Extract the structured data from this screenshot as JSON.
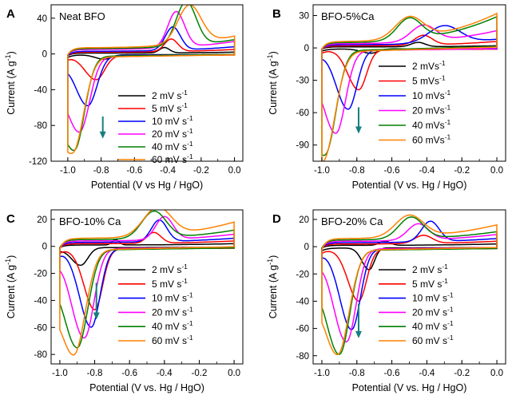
{
  "figure": {
    "ylabel_main": "Current (A g",
    "ylabel_sup": "-1",
    "ylabel_close": ")"
  },
  "chart_data": [
    {
      "id": "A",
      "panel_label": "A",
      "title": "Neat BFO",
      "type": "line",
      "xlabel": "Potential (V vs Hg / HgO)",
      "ylabel": "Current (A g-1)",
      "xlim": [
        -1.1,
        0.05
      ],
      "ylim": [
        -120,
        55
      ],
      "xticks": [
        -1.0,
        -0.8,
        -0.6,
        -0.4,
        -0.2,
        0.0
      ],
      "xtick_labels": [
        "-1.0",
        "-0.8",
        "-0.6",
        "-0.4",
        "-0.2",
        "0.0"
      ],
      "yticks": [
        -120,
        -80,
        -40,
        0,
        40
      ],
      "ytick_labels": [
        "-120",
        "-80",
        "-40",
        "0",
        "40"
      ],
      "arrow": {
        "x": -0.79,
        "y_from": -70,
        "y_to": -93
      },
      "series": [
        {
          "name": "2 mV s",
          "unit_sup": "-1",
          "color": "#000000",
          "cath_v": -0.78,
          "cath_i": -5,
          "cath_w": 0.04,
          "anod_v": -0.42,
          "anod_i": 6,
          "anod_w": 0.03,
          "start_i": -3,
          "end_i": 2,
          "base_top": 1,
          "base_bot": -1
        },
        {
          "name": "5 mV s",
          "unit_sup": "-1",
          "color": "#ff0000",
          "cath_v": -0.83,
          "cath_i": -27,
          "cath_w": 0.05,
          "anod_v": -0.38,
          "anod_i": 14,
          "anod_w": 0.04,
          "start_i": -4,
          "end_i": 5,
          "base_top": 2,
          "base_bot": -2
        },
        {
          "name": "10 mV s",
          "unit_sup": "-1",
          "color": "#0000ff",
          "cath_v": -0.88,
          "cath_i": -56,
          "cath_w": 0.055,
          "anod_v": -0.37,
          "anod_i": 26,
          "anod_w": 0.045,
          "start_i": -5,
          "end_i": 8,
          "base_top": 3,
          "base_bot": -2
        },
        {
          "name": "20 mV s",
          "unit_sup": "-1",
          "color": "#ff00ff",
          "cath_v": -0.93,
          "cath_i": -84,
          "cath_w": 0.06,
          "anod_v": -0.35,
          "anod_i": 40,
          "anod_w": 0.05,
          "start_i": -6,
          "end_i": 14,
          "base_top": 5,
          "base_bot": -3
        },
        {
          "name": "40 mV s",
          "unit_sup": "-1",
          "color": "#008000",
          "cath_v": -0.96,
          "cath_i": -103,
          "cath_w": 0.06,
          "anod_v": -0.29,
          "anod_i": 49,
          "anod_w": 0.06,
          "start_i": -7,
          "end_i": 16,
          "base_top": 6,
          "base_bot": -3
        },
        {
          "name": "60 mV s",
          "unit_sup": "-1",
          "color": "#ff8000",
          "cath_v": -0.97,
          "cath_i": -104,
          "cath_w": 0.065,
          "anod_v": -0.27,
          "anod_i": 43,
          "anod_w": 0.07,
          "start_i": -8,
          "end_i": 20,
          "base_top": 7,
          "base_bot": -4
        }
      ]
    },
    {
      "id": "B",
      "panel_label": "B",
      "title": "BFO-5%Ca",
      "type": "line",
      "xlabel": "Potential (V vs. Hg / HgO)",
      "ylabel": "Current (A g-1)",
      "xlim": [
        -1.05,
        0.05
      ],
      "ylim": [
        -105,
        40
      ],
      "xticks": [
        -1.0,
        -0.8,
        -0.6,
        -0.4,
        -0.2,
        0.0
      ],
      "xtick_labels": [
        "-1.0",
        "-0.8",
        "-0.6",
        "-0.4",
        "-0.2",
        "0.0"
      ],
      "yticks": [
        -90,
        -60,
        -30,
        0,
        30
      ],
      "ytick_labels": [
        "-90",
        "-60",
        "-30",
        "0",
        "30"
      ],
      "arrow": {
        "x": -0.79,
        "y_from": -55,
        "y_to": -78
      },
      "series": [
        {
          "name": "2 mVs",
          "unit_sup": "-1",
          "color": "#000000",
          "cath_v": -0.72,
          "cath_i": -4,
          "cath_w": 0.04,
          "anod_v": -0.45,
          "anod_i": 4,
          "anod_w": 0.04,
          "start_i": -2,
          "end_i": 2,
          "base_top": 1,
          "base_bot": -1
        },
        {
          "name": "5 mVs",
          "unit_sup": "-1",
          "color": "#ff0000",
          "cath_v": -0.79,
          "cath_i": -37,
          "cath_w": 0.045,
          "anod_v": -0.42,
          "anod_i": 9,
          "anod_w": 0.05,
          "start_i": -3,
          "end_i": 6,
          "base_top": 2,
          "base_bot": -2
        },
        {
          "name": "10 mVs",
          "unit_sup": "-1",
          "color": "#0000ff",
          "cath_v": -0.85,
          "cath_i": -55,
          "cath_w": 0.05,
          "anod_v": -0.3,
          "anod_i": 16,
          "anod_w": 0.09,
          "start_i": -4,
          "end_i": 8,
          "base_top": 3,
          "base_bot": -2
        },
        {
          "name": "20 mVs",
          "unit_sup": "-1",
          "color": "#ff00ff",
          "cath_v": -0.92,
          "cath_i": -76,
          "cath_w": 0.055,
          "anod_v": -0.42,
          "anod_i": 15,
          "anod_w": 0.07,
          "start_i": -5,
          "end_i": 16,
          "base_top": 4,
          "base_bot": -3
        },
        {
          "name": "40 mVs",
          "unit_sup": "-1",
          "color": "#008000",
          "cath_v": -0.98,
          "cath_i": -93,
          "cath_w": 0.06,
          "anod_v": -0.5,
          "anod_i": 20,
          "anod_w": 0.07,
          "start_i": -6,
          "end_i": 29,
          "base_top": 5,
          "base_bot": -3
        },
        {
          "name": "60 mVs",
          "unit_sup": "-1",
          "color": "#ff8000",
          "cath_v": -0.99,
          "cath_i": -96,
          "cath_w": 0.065,
          "anod_v": -0.5,
          "anod_i": 20,
          "anod_w": 0.08,
          "start_i": -7,
          "end_i": 32,
          "base_top": 6,
          "base_bot": -4
        }
      ]
    },
    {
      "id": "C",
      "panel_label": "C",
      "title": "BFO-10% Ca",
      "type": "line",
      "xlabel": "Potential (V vs. Hg / HgO)",
      "ylabel": "Current (A g-1)",
      "xlim": [
        -1.05,
        0.05
      ],
      "ylim": [
        -87,
        27
      ],
      "xticks": [
        -1.0,
        -0.8,
        -0.6,
        -0.4,
        -0.2,
        0.0
      ],
      "xtick_labels": [
        "-1.0",
        "-0.8",
        "-0.6",
        "-0.4",
        "-0.2",
        "0.0"
      ],
      "yticks": [
        -80,
        -60,
        -40,
        -20,
        0,
        20
      ],
      "ytick_labels": [
        "-80",
        "-60",
        "-40",
        "-20",
        "0",
        "20"
      ],
      "arrow": {
        "x": -0.79,
        "y_from": -27,
        "y_to": -53
      },
      "series": [
        {
          "name": "2 mV s",
          "unit_sup": "-1",
          "color": "#000000",
          "cath_v": -0.88,
          "cath_i": -13,
          "cath_w": 0.04,
          "anod_v": -0.68,
          "anod_i": 4,
          "anod_w": 0.02,
          "start_i": -2,
          "end_i": 2,
          "base_top": 1,
          "base_bot": -1
        },
        {
          "name": "5 mV s",
          "unit_sup": "-1",
          "color": "#ff0000",
          "cath_v": -0.8,
          "cath_i": -45,
          "cath_w": 0.045,
          "anod_v": -0.46,
          "anod_i": 8,
          "anod_w": 0.04,
          "start_i": -3,
          "end_i": 4,
          "base_top": 2,
          "base_bot": -2
        },
        {
          "name": "10 mV s",
          "unit_sup": "-1",
          "color": "#0000ff",
          "cath_v": -0.82,
          "cath_i": -58,
          "cath_w": 0.05,
          "anod_v": -0.43,
          "anod_i": 16,
          "anod_w": 0.045,
          "start_i": -4,
          "end_i": 6,
          "base_top": 3,
          "base_bot": -2
        },
        {
          "name": "20 mV s",
          "unit_sup": "-1",
          "color": "#ff00ff",
          "cath_v": -0.86,
          "cath_i": -66,
          "cath_w": 0.055,
          "anod_v": -0.4,
          "anod_i": 17,
          "anod_w": 0.05,
          "start_i": -5,
          "end_i": 9,
          "base_top": 4,
          "base_bot": -2
        },
        {
          "name": "40 mV s",
          "unit_sup": "-1",
          "color": "#008000",
          "cath_v": -0.9,
          "cath_i": -72,
          "cath_w": 0.06,
          "anod_v": -0.46,
          "anod_i": 20,
          "anod_w": 0.07,
          "start_i": -6,
          "end_i": 12,
          "base_top": 5,
          "base_bot": -3
        },
        {
          "name": "60 mV s",
          "unit_sup": "-1",
          "color": "#ff8000",
          "cath_v": -0.92,
          "cath_i": -77,
          "cath_w": 0.065,
          "anod_v": -0.44,
          "anod_i": 21,
          "anod_w": 0.08,
          "start_i": -8,
          "end_i": 18,
          "base_top": 6,
          "base_bot": -3
        }
      ]
    },
    {
      "id": "D",
      "panel_label": "D",
      "title": "BFO-20% Ca",
      "type": "line",
      "xlabel": "Potential (V vs. Hg / HgO)",
      "ylabel": "Current (A g-1)",
      "xlim": [
        -1.05,
        0.05
      ],
      "ylim": [
        -86,
        27
      ],
      "xticks": [
        -1.0,
        -0.8,
        -0.6,
        -0.4,
        -0.2,
        0.0
      ],
      "xtick_labels": [
        "-1.0",
        "-0.8",
        "-0.6",
        "-0.4",
        "-0.2",
        "0.0"
      ],
      "yticks": [
        -80,
        -60,
        -40,
        -20,
        0,
        20
      ],
      "ytick_labels": [
        "-80",
        "-60",
        "-40",
        "-20",
        "0",
        "20"
      ],
      "arrow": {
        "x": -0.79,
        "y_from": -42,
        "y_to": -66
      },
      "series": [
        {
          "name": "2 mV s",
          "unit_sup": "-1",
          "color": "#000000",
          "cath_v": -0.73,
          "cath_i": -16,
          "cath_w": 0.03,
          "anod_v": -0.64,
          "anod_i": 3,
          "anod_w": 0.03,
          "start_i": -2,
          "end_i": 2,
          "base_top": 1,
          "base_bot": -1
        },
        {
          "name": "5 mV s",
          "unit_sup": "-1",
          "color": "#ff0000",
          "cath_v": -0.79,
          "cath_i": -38,
          "cath_w": 0.045,
          "anod_v": -0.42,
          "anod_i": 6,
          "anod_w": 0.05,
          "start_i": -3,
          "end_i": 4,
          "base_top": 2,
          "base_bot": -2
        },
        {
          "name": "10 mV s",
          "unit_sup": "-1",
          "color": "#0000ff",
          "cath_v": -0.83,
          "cath_i": -59,
          "cath_w": 0.05,
          "anod_v": -0.38,
          "anod_i": 15,
          "anod_w": 0.05,
          "start_i": -4,
          "end_i": 6,
          "base_top": 3,
          "base_bot": -2
        },
        {
          "name": "20 mV s",
          "unit_sup": "-1",
          "color": "#ff00ff",
          "cath_v": -0.86,
          "cath_i": -68,
          "cath_w": 0.055,
          "anod_v": -0.45,
          "anod_i": 12,
          "anod_w": 0.06,
          "start_i": -5,
          "end_i": 9,
          "base_top": 4,
          "base_bot": -2
        },
        {
          "name": "40 mV s",
          "unit_sup": "-1",
          "color": "#008000",
          "cath_v": -0.9,
          "cath_i": -76,
          "cath_w": 0.06,
          "anod_v": -0.49,
          "anod_i": 16,
          "anod_w": 0.07,
          "start_i": -6,
          "end_i": 11,
          "base_top": 5,
          "base_bot": -3
        },
        {
          "name": "60 mV s",
          "unit_sup": "-1",
          "color": "#ff8000",
          "cath_v": -0.91,
          "cath_i": -76,
          "cath_w": 0.065,
          "anod_v": -0.5,
          "anod_i": 16,
          "anod_w": 0.08,
          "start_i": -8,
          "end_i": 16,
          "base_top": 6,
          "base_bot": -3
        }
      ]
    }
  ]
}
